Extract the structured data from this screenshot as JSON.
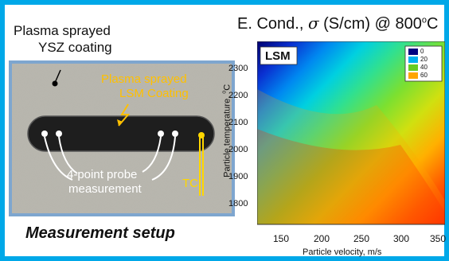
{
  "left_panel": {
    "ysz_label_line1": "Plasma sprayed",
    "ysz_label_line2": "YSZ coating",
    "lsm_label_line1": "Plasma sprayed",
    "lsm_label_line2": "LSM Coating",
    "probe_label_line1": "4-point probe",
    "probe_label_line2": "measurement",
    "tc_label": "TC",
    "caption": "Measurement setup"
  },
  "right_panel": {
    "title_prefix": "E. Cond., ",
    "title_symbol": "σ",
    "title_suffix": " (S/cm) @ 800",
    "title_degree": "o",
    "title_unit": "C",
    "material_label": "LSM",
    "y_axis_label_main": "Particle temperature, ",
    "y_axis_label_degree": "o",
    "y_axis_label_unit": "C",
    "x_axis_label": "Particle velocity, m/s",
    "x_ticks": [
      "150",
      "200",
      "250",
      "300",
      "350"
    ],
    "y_ticks": [
      "2300",
      "2200",
      "2100",
      "2000",
      "1900",
      "1800"
    ],
    "legend": [
      {
        "label": "0",
        "color": "#000080"
      },
      {
        "label": "20",
        "color": "#00b0f0"
      },
      {
        "label": "40",
        "color": "#66cc22"
      },
      {
        "label": "60",
        "color": "#ffa500"
      }
    ]
  },
  "colors": {
    "frame": "#00a8e8",
    "lsm_annotation": "#ffc000",
    "contour_high": "#ff1a00",
    "contour_low": "#000080"
  }
}
